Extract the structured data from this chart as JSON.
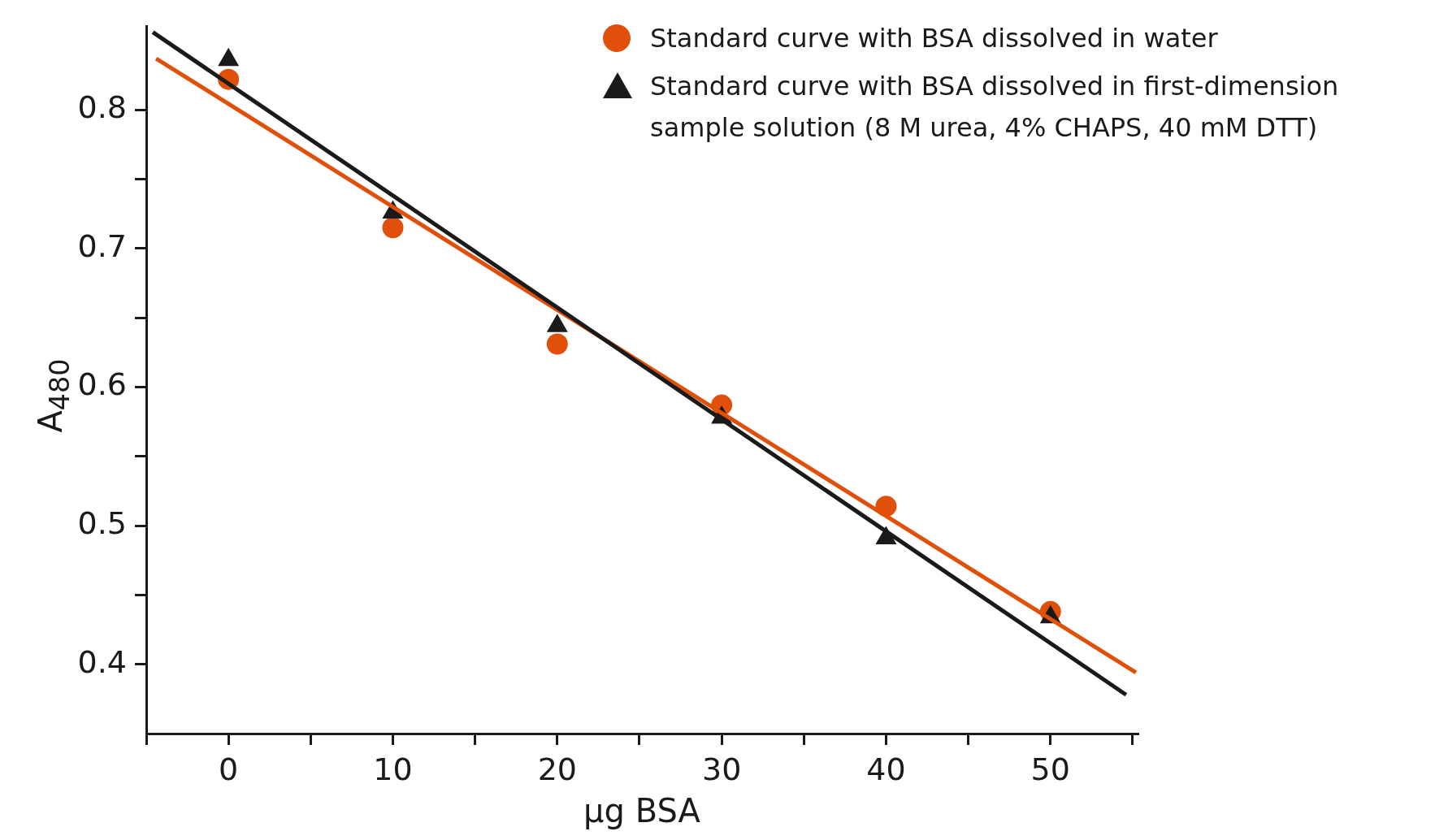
{
  "chart_data": {
    "type": "scatter",
    "xlabel": "µg BSA",
    "ylabel": "A$_{480}$",
    "xlim": [
      -5,
      55.3
    ],
    "ylim": [
      0.35,
      0.86
    ],
    "xticks": [
      {
        "value": -5,
        "label": null
      },
      0,
      {
        "value": 5,
        "label": null
      },
      10,
      {
        "value": 15,
        "label": null
      },
      20,
      {
        "value": 25,
        "label": null
      },
      30,
      {
        "value": 35,
        "label": null
      },
      40,
      {
        "value": 45,
        "label": null
      },
      50,
      {
        "value": 55,
        "label": null
      }
    ],
    "yticks": [
      0.4,
      {
        "value": 0.45,
        "label": null
      },
      0.5,
      {
        "value": 0.55,
        "label": null
      },
      0.6,
      {
        "value": 0.65,
        "label": null
      },
      0.7,
      {
        "value": 0.75,
        "label": null
      },
      0.8
    ],
    "grid": false,
    "legend": "top right",
    "series": [
      {
        "name": "Standard curve with BSA dissolved in water",
        "type": "scatter",
        "marker": "circle",
        "color": "#e0500a",
        "x": [
          0,
          10,
          20,
          30,
          40,
          50
        ],
        "values": [
          0.822,
          0.715,
          0.631,
          0.587,
          0.514,
          0.438
        ]
      },
      {
        "name": "Standard curve with BSA dissolved in first-dimension sample solution (8 M urea, 4% CHAPS, 40 mM DTT)",
        "type": "scatter",
        "marker": "triangle",
        "color": "#1a1a1a",
        "x": [
          0,
          10,
          20,
          30,
          40,
          50
        ],
        "values": [
          0.836,
          0.726,
          0.644,
          0.578,
          0.491,
          0.434
        ]
      },
      {
        "type": "line",
        "marker": "none",
        "line_style": "solid",
        "color": "#e0500a",
        "x": [
          -4.4,
          55.2
        ],
        "values": [
          0.837,
          0.394
        ]
      },
      {
        "type": "line",
        "marker": "none",
        "line_style": "solid",
        "color": "#1a1a1a",
        "x": [
          -4.6,
          54.6
        ],
        "values": [
          0.856,
          0.378
        ]
      }
    ]
  }
}
